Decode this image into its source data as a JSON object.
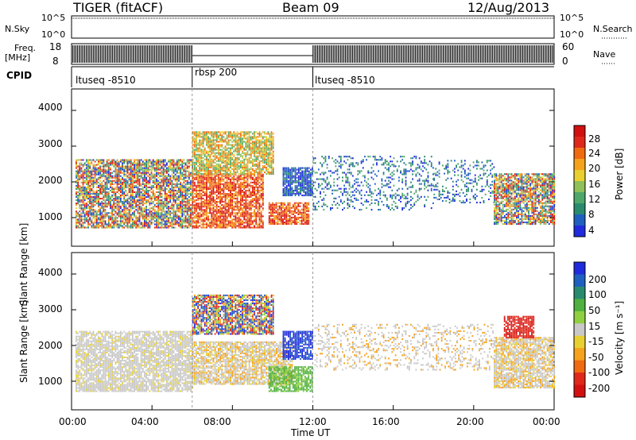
{
  "header": {
    "radar": "TIGER (fitACF)",
    "beam": "Beam 09",
    "date": "12/Aug/2013"
  },
  "top_panels": {
    "nsky_label": "N.Sky",
    "nsky_ticks": [
      "10^5",
      "10^0"
    ],
    "nsearch_label": "N.Search",
    "freq_label_line1": "Freq.",
    "freq_label_line2": "[MHz]",
    "freq_ticks": [
      "18",
      "8"
    ],
    "nave_label": "Nave",
    "nave_ticks": [
      "60",
      "0"
    ],
    "cpid_label": "CPID",
    "cpid_segments": [
      {
        "name": "ltuseq -8510",
        "start": 0,
        "end": 6
      },
      {
        "name": "rbsp 200",
        "start": 6,
        "end": 12
      },
      {
        "name": "ltuseq -8510",
        "start": 12,
        "end": 24
      }
    ]
  },
  "chart_data": [
    {
      "type": "heatmap",
      "name": "power",
      "ylabel": "Slant Range [km]",
      "ylim": [
        200,
        4600
      ],
      "yticks": [
        "1000",
        "2000",
        "3000",
        "4000"
      ],
      "xlim": [
        0,
        24
      ],
      "colorbar": {
        "label": "Power [dB]",
        "ticks": [
          "4",
          "8",
          "12",
          "16",
          "20",
          "24",
          "28"
        ],
        "colors": [
          "#1f2bdc",
          "#1f5fbf",
          "#2a8a6e",
          "#4fa76a",
          "#8fc05a",
          "#e8d030",
          "#f5a21c",
          "#f06a10",
          "#e0281a",
          "#d21010"
        ]
      },
      "regions": [
        {
          "t0": 0.2,
          "t1": 6.0,
          "r0": 700,
          "r1": 2600,
          "level": "mixed"
        },
        {
          "t0": 6.0,
          "t1": 9.5,
          "r0": 700,
          "r1": 2200,
          "level": "high"
        },
        {
          "t0": 6.0,
          "t1": 10.0,
          "r0": 2200,
          "r1": 3400,
          "level": "mid"
        },
        {
          "t0": 9.8,
          "t1": 11.8,
          "r0": 800,
          "r1": 1400,
          "level": "high"
        },
        {
          "t0": 10.5,
          "t1": 12.0,
          "r0": 1600,
          "r1": 2400,
          "level": "low"
        },
        {
          "t0": 12.0,
          "t1": 18.0,
          "r0": 1200,
          "r1": 2700,
          "level": "sparse"
        },
        {
          "t0": 18.0,
          "t1": 21.0,
          "r0": 1400,
          "r1": 2600,
          "level": "sparse"
        },
        {
          "t0": 21.0,
          "t1": 24.0,
          "r0": 800,
          "r1": 2200,
          "level": "mixed"
        }
      ]
    },
    {
      "type": "heatmap",
      "name": "velocity",
      "ylabel": "Slant Range [km]",
      "ylim": [
        200,
        4600
      ],
      "yticks": [
        "1000",
        "2000",
        "3000",
        "4000"
      ],
      "xlim": [
        0,
        24
      ],
      "xticks": [
        "00:00",
        "04:00",
        "08:00",
        "12:00",
        "16:00",
        "20:00",
        "00:00"
      ],
      "xlabel": "Time UT",
      "colorbar": {
        "label": "Velocity [m s⁻¹]",
        "ticks": [
          "200",
          "100",
          "50",
          "15",
          "-15",
          "-50",
          "-100",
          "-200"
        ],
        "colors": [
          "#1f2bdc",
          "#1f5fbf",
          "#2a8a6e",
          "#50b040",
          "#8fd040",
          "#c8c8c8",
          "#e8d030",
          "#f5a21c",
          "#f06a10",
          "#e0281a",
          "#d21010"
        ]
      },
      "regions": [
        {
          "t0": 0.2,
          "t1": 6.0,
          "r0": 700,
          "r1": 2400,
          "level": "gray"
        },
        {
          "t0": 6.0,
          "t1": 11.0,
          "r0": 900,
          "r1": 2100,
          "level": "gray-orange"
        },
        {
          "t0": 6.0,
          "t1": 10.0,
          "r0": 2300,
          "r1": 3400,
          "level": "blue-mixed"
        },
        {
          "t0": 9.8,
          "t1": 12.0,
          "r0": 700,
          "r1": 1400,
          "level": "green"
        },
        {
          "t0": 10.5,
          "t1": 12.0,
          "r0": 1600,
          "r1": 2400,
          "level": "blue"
        },
        {
          "t0": 12.0,
          "t1": 21.0,
          "r0": 1300,
          "r1": 2600,
          "level": "sparse-gray"
        },
        {
          "t0": 21.0,
          "t1": 24.0,
          "r0": 800,
          "r1": 2200,
          "level": "gray-orange"
        },
        {
          "t0": 21.5,
          "t1": 23.0,
          "r0": 2200,
          "r1": 2800,
          "level": "red"
        }
      ]
    }
  ]
}
